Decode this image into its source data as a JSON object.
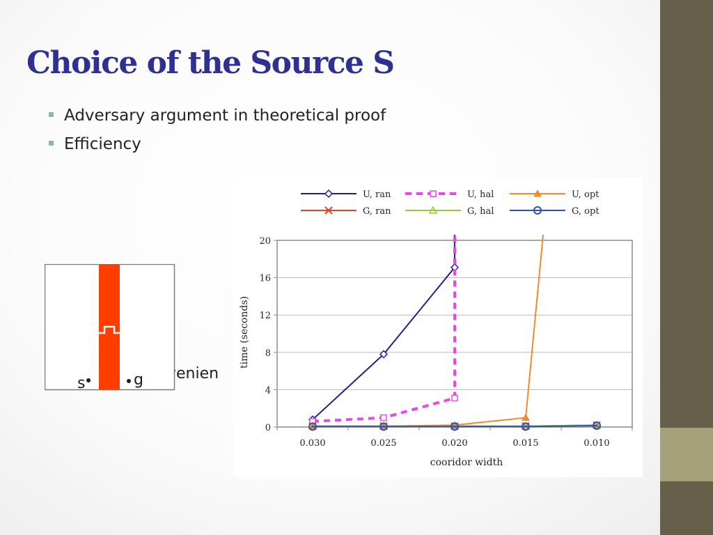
{
  "slide": {
    "title": "Choice of the Source S",
    "bullets": [
      "Adversary argument in theoretical proof",
      "Efficiency"
    ],
    "partial_text": "venien"
  },
  "diagram": {
    "label_s": "s",
    "label_g": "g",
    "corridor_color": "#ff3d00"
  },
  "chart_data": {
    "type": "line",
    "x": [
      "0.030",
      "0.025",
      "0.020",
      "0.015",
      "0.010"
    ],
    "xlabel": "cooridor width",
    "ylabel": "time (seconds)",
    "ylim": [
      0,
      20
    ],
    "yticks": [
      0,
      4,
      8,
      12,
      16,
      20
    ],
    "grid": true,
    "legend_position": "top",
    "series": [
      {
        "name": "U, ran",
        "color": "#1f1f8f",
        "marker": "diamond",
        "dash": false,
        "values": [
          0.8,
          7.8,
          17.1,
          null,
          null
        ],
        "off_chart_after": 2
      },
      {
        "name": "U, hal",
        "color": "#ee44ee",
        "marker": "square",
        "dash": true,
        "values": [
          0.6,
          1.0,
          3.1,
          null,
          null
        ],
        "off_chart_after": 2
      },
      {
        "name": "U, opt",
        "color": "#f28a2a",
        "marker": "triangle",
        "dash": false,
        "values": [
          0.1,
          0.1,
          0.2,
          1.0,
          null
        ],
        "off_chart_after": 3
      },
      {
        "name": "G, ran",
        "color": "#e0452b",
        "marker": "x",
        "dash": false,
        "values": [
          0.1,
          0.1,
          0.1,
          0.1,
          0.2
        ]
      },
      {
        "name": "G, hal",
        "color": "#9acd32",
        "marker": "triangle-open",
        "dash": false,
        "values": [
          0.1,
          0.1,
          0.1,
          0.1,
          0.2
        ]
      },
      {
        "name": "G, opt",
        "color": "#2a4fbf",
        "marker": "circle",
        "dash": false,
        "values": [
          0.05,
          0.05,
          0.05,
          0.05,
          0.15
        ]
      }
    ]
  }
}
